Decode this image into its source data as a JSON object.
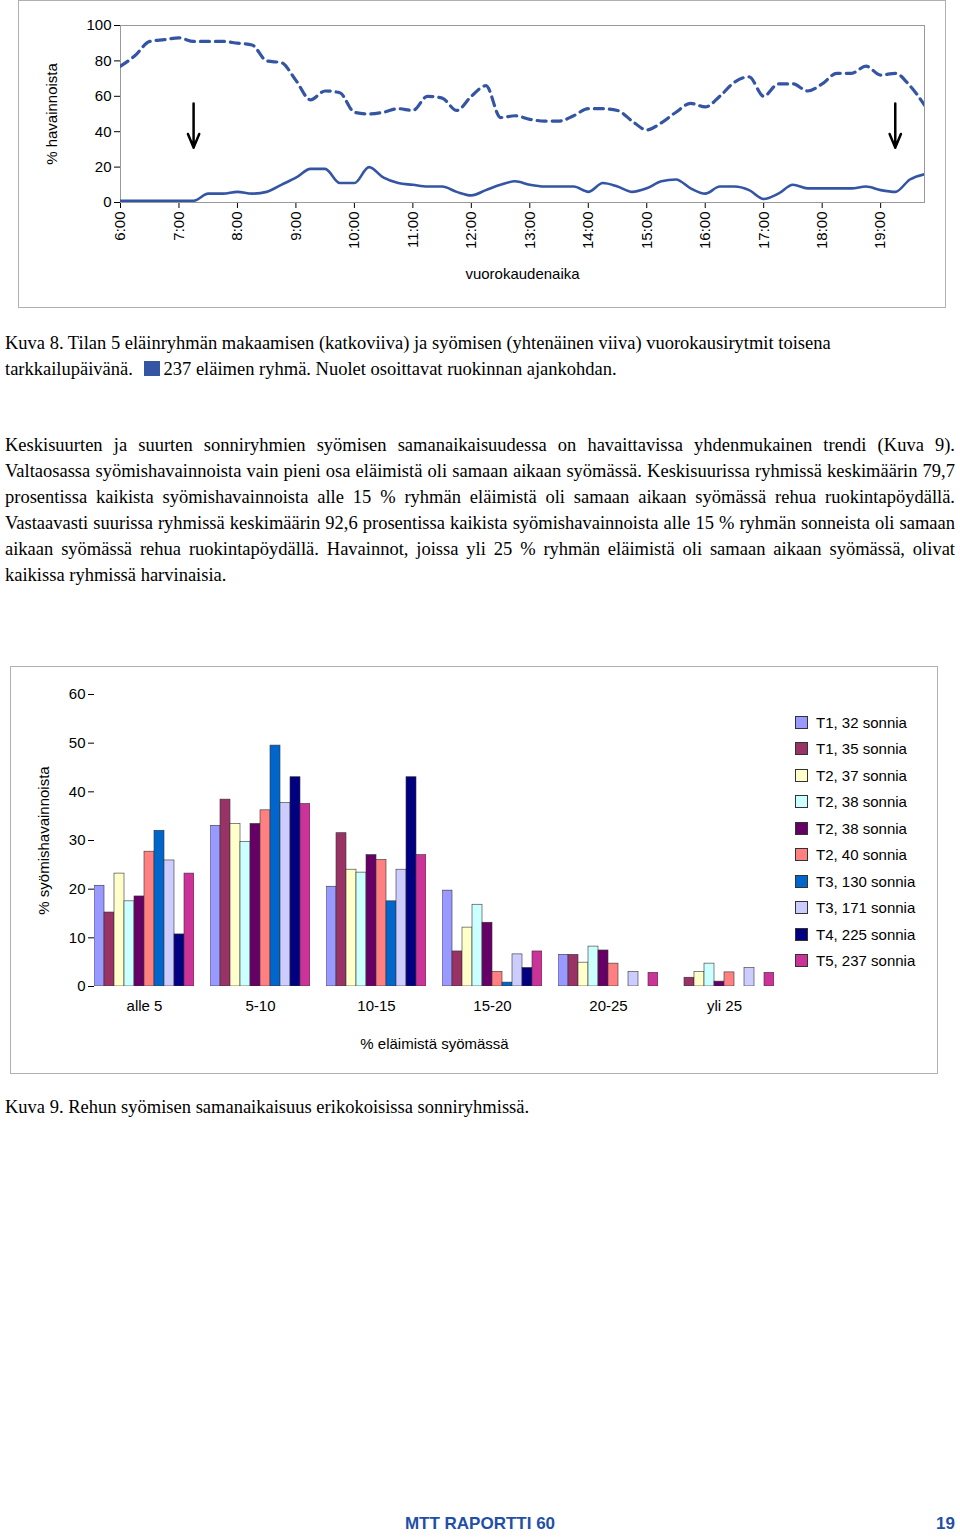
{
  "chart_data": [
    {
      "type": "line",
      "x": [
        6,
        6.25,
        6.5,
        6.75,
        7,
        7.25,
        7.5,
        7.75,
        8,
        8.25,
        8.5,
        8.75,
        9,
        9.25,
        9.5,
        9.75,
        10,
        10.25,
        10.5,
        10.75,
        11,
        11.25,
        11.5,
        11.75,
        12,
        12.25,
        12.5,
        12.75,
        13,
        13.25,
        13.5,
        13.75,
        14,
        14.25,
        14.5,
        14.75,
        15,
        15.25,
        15.5,
        15.75,
        16,
        16.25,
        16.5,
        16.75,
        17,
        17.25,
        17.5,
        17.75,
        18,
        18.25,
        18.5,
        18.75,
        19,
        19.25,
        19.5,
        19.75
      ],
      "series": [
        {
          "color": "#3355a3",
          "line_style": "dashed",
          "values": [
            77,
            83,
            91,
            92,
            93,
            91,
            91,
            91,
            90,
            89,
            80,
            79,
            69,
            58,
            63,
            62,
            51,
            50,
            51,
            53,
            52,
            60,
            59,
            52,
            60,
            66,
            48,
            49,
            47,
            46,
            46,
            49,
            53,
            53,
            52,
            46,
            41,
            45,
            51,
            56,
            54,
            60,
            68,
            71,
            60,
            67,
            67,
            63,
            67,
            73,
            73,
            77,
            72,
            73,
            66,
            55
          ]
        },
        {
          "color": "#3355a3",
          "line_style": "solid",
          "values": [
            1,
            1,
            1,
            1,
            1,
            1,
            5,
            5,
            6,
            5,
            6,
            10,
            14,
            19,
            19,
            11,
            11,
            20,
            14,
            11,
            10,
            9,
            9,
            6,
            4,
            7,
            10,
            12,
            10,
            9,
            9,
            9,
            6,
            11,
            9,
            6,
            8,
            12,
            13,
            8,
            5,
            9,
            9,
            7,
            2,
            5,
            10,
            8,
            8,
            8,
            8,
            9,
            7,
            6,
            13,
            16
          ]
        }
      ],
      "feeding_times": [
        7.25,
        19.25
      ],
      "x_label": "vuorokaudenaika",
      "y_label": "% havainnoista",
      "xlim": [
        6,
        19.75
      ],
      "xticks": [
        {
          "value": 6,
          "label": "6:00"
        },
        {
          "value": 7,
          "label": "7:00"
        },
        {
          "value": 8,
          "label": "8:00"
        },
        {
          "value": 9,
          "label": "9:00"
        },
        {
          "value": 10,
          "label": "10:00"
        },
        {
          "value": 11,
          "label": "11:00"
        },
        {
          "value": 12,
          "label": "12:00"
        },
        {
          "value": 13,
          "label": "13:00"
        },
        {
          "value": 14,
          "label": "14:00"
        },
        {
          "value": 15,
          "label": "15:00"
        },
        {
          "value": 16,
          "label": "16:00"
        },
        {
          "value": 17,
          "label": "17:00"
        },
        {
          "value": 18,
          "label": "18:00"
        },
        {
          "value": 19,
          "label": "19:00"
        }
      ],
      "ylim": [
        0,
        100
      ],
      "yticks": [
        0,
        20,
        40,
        60,
        80,
        100
      ],
      "grid": false
    },
    {
      "type": "bar",
      "categories": [
        "alle 5",
        "5-10",
        "10-15",
        "15-20",
        "20-25",
        "yli 25"
      ],
      "series": [
        {
          "name": "T1, 32 sonnia",
          "color": "#9999ff",
          "values": [
            20.7,
            33,
            20.5,
            19.7,
            6.5,
            0
          ]
        },
        {
          "name": "T1, 35 sonnia",
          "color": "#993366",
          "values": [
            15.2,
            38.4,
            31.5,
            7.2,
            6.5,
            1.8
          ]
        },
        {
          "name": "T2, 37 sonnia",
          "color": "#ffffcc",
          "values": [
            23.2,
            33.4,
            24,
            12.1,
            4.9,
            3
          ]
        },
        {
          "name": "T2, 38 sonnia",
          "color": "#ccffff",
          "values": [
            17.5,
            29.7,
            23.4,
            16.8,
            8.2,
            4.7
          ]
        },
        {
          "name": "T2, 38 sonnia",
          "color": "#660066",
          "values": [
            18.5,
            33.4,
            27,
            13.1,
            7.4,
            1
          ]
        },
        {
          "name": "T2, 40 sonnia",
          "color": "#ff8080",
          "values": [
            27.7,
            36.2,
            26,
            3,
            4.7,
            2.9
          ]
        },
        {
          "name": "T3, 130 sonnia",
          "color": "#0066cc",
          "values": [
            32,
            49.5,
            17.5,
            0.8,
            0,
            0
          ]
        },
        {
          "name": "T3, 171 sonnia",
          "color": "#ccccff",
          "values": [
            25.9,
            37.7,
            24,
            6.6,
            3,
            3.8
          ]
        },
        {
          "name": "T4, 225 sonnia",
          "color": "#000080",
          "values": [
            10.7,
            43,
            43,
            3.8,
            0,
            0
          ]
        },
        {
          "name": "T5, 237 sonnia",
          "color": "#cc3399",
          "values": [
            23.2,
            37.5,
            27,
            7.2,
            2.8,
            2.8
          ]
        }
      ],
      "x_label": "% eläimistä syömässä",
      "y_label": "% syömishavainnoista",
      "ylim": [
        0,
        60
      ],
      "yticks": [
        0,
        10,
        20,
        30,
        40,
        50,
        60
      ],
      "legend": "right",
      "grid": false
    }
  ],
  "document": {
    "caption_8": [
      "Kuva 8. Tilan 5 eläinryhmän makaamisen (katkoviiva) ja syömisen (yhtenäinen viiva) vuorokausirytmit toisena tarkkailupäivänä.",
      "237 eläimen ryhmä. Nuolet osoittavat ruokinnan ajankohdan."
    ],
    "paragraph": "Keskisuurten ja suurten sonniryhmien syömisen samanaikaisuudessa on havaittavissa yhdenmukainen trendi (Kuva 9). Valtaosassa syömishavainnoista vain pieni osa eläimistä oli samaan aikaan syömässä. Keskisuurissa ryhmissä keskimäärin 79,7 prosentissa kaikista syömishavainnoista alle 15 % ryhmän eläimistä oli samaan aikaan syömässä rehua ruokintapöydällä. Vastaavasti suurissa ryhmissä keskimäärin 92,6 prosentissa kaikista syömishavainnoista alle 15 % ryhmän sonneista oli samaan aikaan syömässä rehua ruokintapöydällä. Havainnot, joissa yli 25 % ryhmän eläimistä oli samaan aikaan syömässä, olivat kaikissa ryhmissä harvinaisia.",
    "caption_9": "Kuva 9. Rehun syömisen samanaikaisuus erikokoisissa sonniryhmissä.",
    "footer": "MTT RAPORTTI 60",
    "page_number": "19"
  }
}
